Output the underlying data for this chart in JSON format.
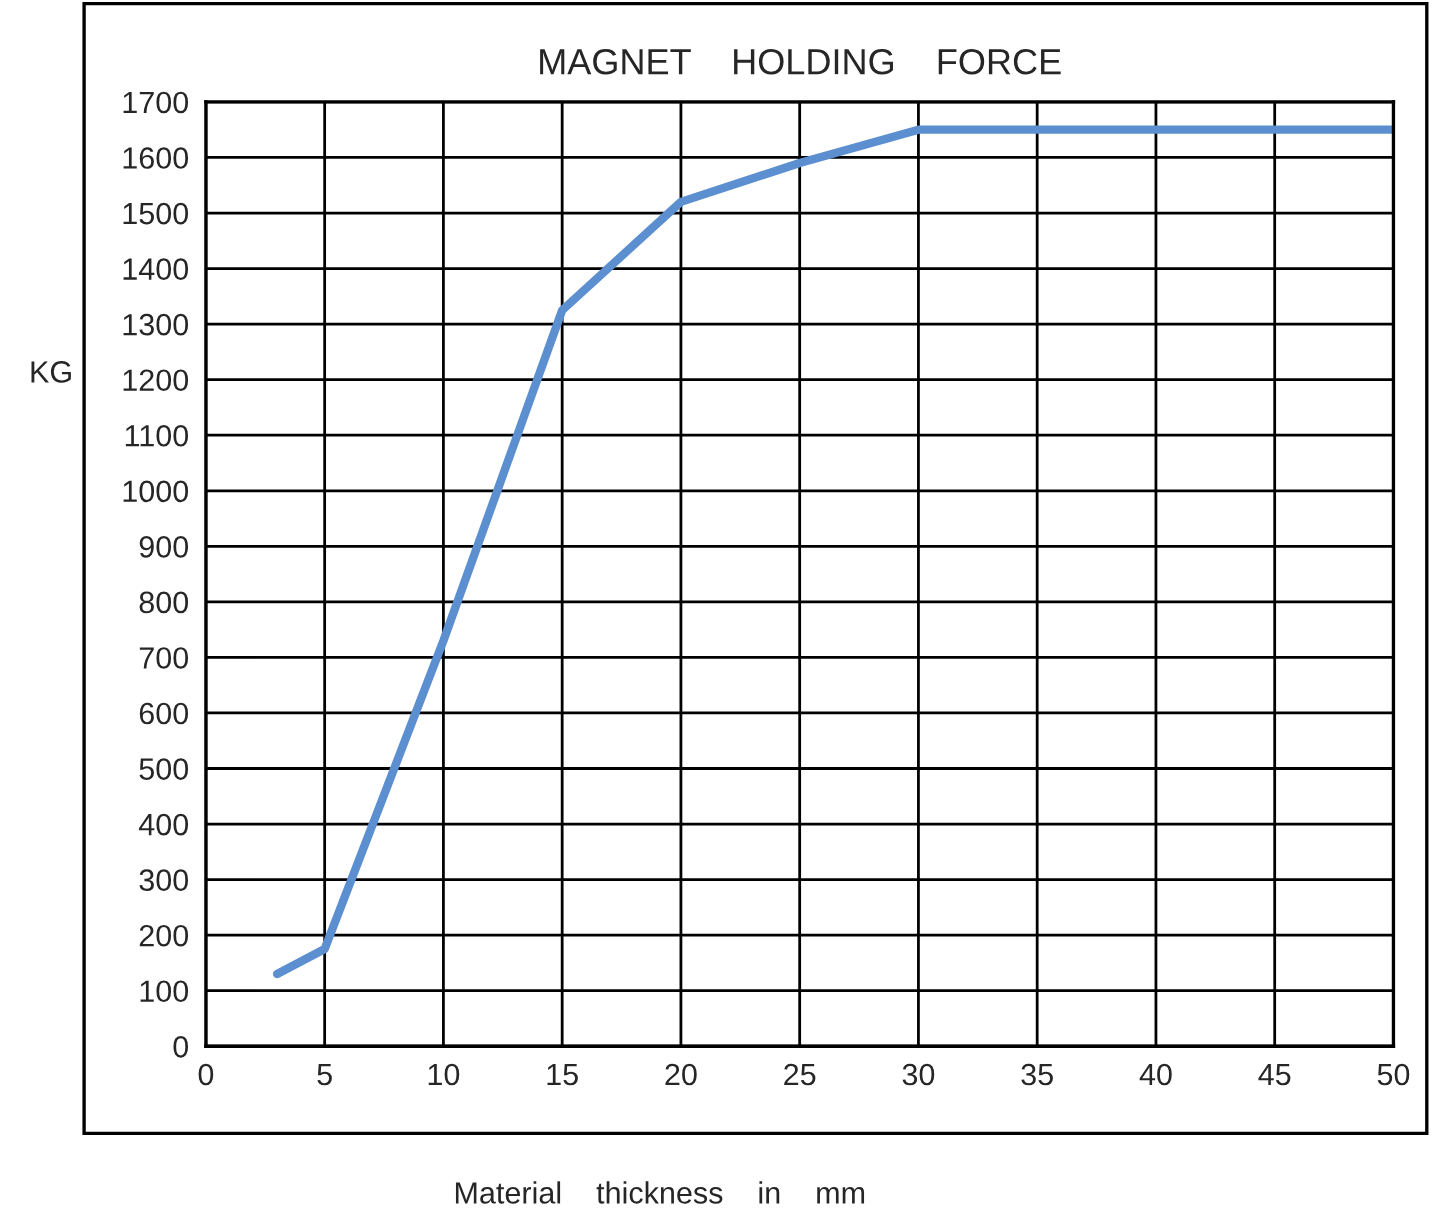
{
  "chart_data": {
    "type": "line",
    "title": "MAGNET    HOLDING    FORCE",
    "xlabel": "Material    thickness    in    mm",
    "ylabel": "KG",
    "x": [
      3,
      5,
      10,
      15,
      20,
      25,
      30,
      50
    ],
    "series": [
      {
        "color": "#5b8fd0",
        "values": [
          130,
          175,
          730,
          1325,
          1520,
          1590,
          1650,
          1650
        ]
      }
    ],
    "xlim": [
      0,
      50
    ],
    "xticks": [
      0,
      5,
      10,
      15,
      20,
      25,
      30,
      35,
      40,
      45,
      50
    ],
    "ylim": [
      0,
      1700
    ],
    "yticks": [
      0,
      100,
      200,
      300,
      400,
      500,
      600,
      700,
      800,
      900,
      1000,
      1100,
      1200,
      1300,
      1400,
      1500,
      1600,
      1700
    ],
    "grid": true,
    "marker": "none",
    "line_style": "solid"
  }
}
